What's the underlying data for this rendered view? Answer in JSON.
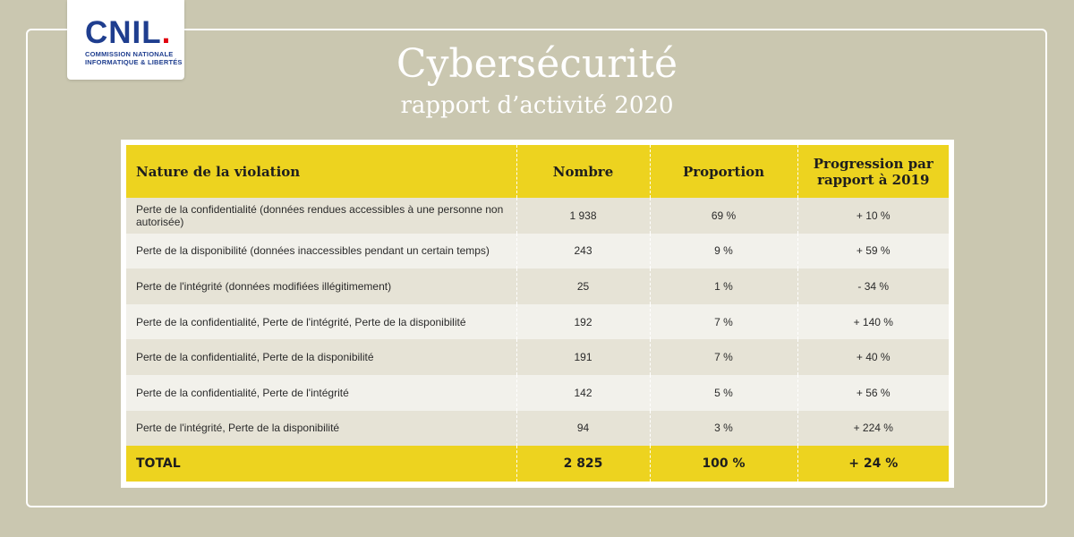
{
  "logo": {
    "word": "CNIL",
    "dot": ".",
    "line1": "COMMISSION NATIONALE",
    "line2": "INFORMATIQUE & LIBERTÉS"
  },
  "header": {
    "title": "Cybersécurité",
    "subtitle": "rapport d’activité 2020"
  },
  "table": {
    "columns": [
      "Nature de la violation",
      "Nombre",
      "Proportion",
      "Progression par rapport à 2019"
    ],
    "rows": [
      {
        "nature": "Perte de la confidentialité (données rendues accessibles à une personne non autorisée)",
        "nombre": "1 938",
        "proportion": "69 %",
        "progression": "+ 10 %"
      },
      {
        "nature": "Perte de la disponibilité (données inaccessibles pendant un certain temps)",
        "nombre": "243",
        "proportion": "9 %",
        "progression": "+ 59 %"
      },
      {
        "nature": "Perte de l'intégrité (données modifiées illégitimement)",
        "nombre": "25",
        "proportion": "1 %",
        "progression": "- 34 %"
      },
      {
        "nature": "Perte de la confidentialité, Perte de l'intégrité, Perte de la disponibilité",
        "nombre": "192",
        "proportion": "7 %",
        "progression": "+ 140 %"
      },
      {
        "nature": "Perte de la confidentialité, Perte de la disponibilité",
        "nombre": "191",
        "proportion": "7 %",
        "progression": "+ 40 %"
      },
      {
        "nature": "Perte de la confidentialité, Perte de l'intégrité",
        "nombre": "142",
        "proportion": "5 %",
        "progression": "+ 56 %"
      },
      {
        "nature": "Perte de l'intégrité, Perte de la disponibilité",
        "nombre": "94",
        "proportion": "3 %",
        "progression": "+ 224 %"
      }
    ],
    "total": {
      "label": "TOTAL",
      "nombre": "2 825",
      "proportion": "100 %",
      "progression": "+ 24 %"
    }
  },
  "colors": {
    "background": "#cac7b0",
    "header_yellow": "#edd31f",
    "logo_blue": "#1f3e8f",
    "logo_red": "#e1000f"
  }
}
